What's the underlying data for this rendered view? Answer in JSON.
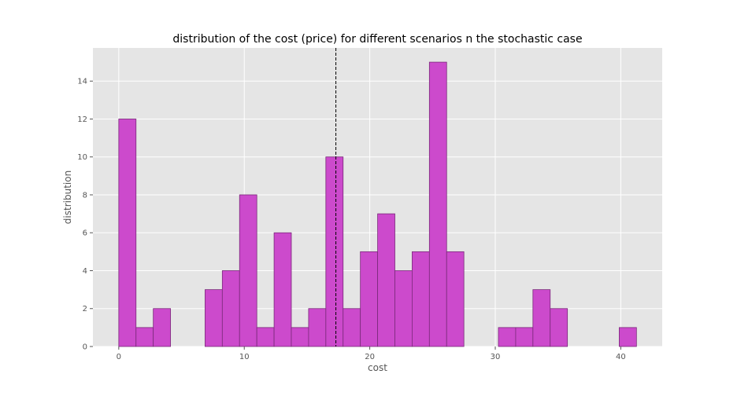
{
  "chart_data": {
    "type": "bar",
    "title": "distribution of the cost (price) for different scenarios n the stochastic case",
    "xlabel": "cost",
    "ylabel": "distribution",
    "xlim": [
      -2.06,
      43.3
    ],
    "ylim": [
      0,
      15.75
    ],
    "xticks": [
      0,
      10,
      20,
      30,
      40
    ],
    "yticks": [
      0,
      2,
      4,
      6,
      8,
      10,
      12,
      14
    ],
    "grid": true,
    "bin_edges": [
      0.0,
      1.375,
      2.75,
      4.125,
      5.5,
      6.875,
      8.25,
      9.625,
      11.0,
      12.375,
      13.75,
      15.125,
      16.5,
      17.875,
      19.25,
      20.625,
      22.0,
      23.375,
      24.75,
      26.125,
      27.5,
      28.875,
      30.25,
      31.625,
      33.0,
      34.375,
      35.75,
      37.125,
      38.5,
      39.875,
      41.25
    ],
    "values": [
      12,
      1,
      2,
      0,
      0,
      3,
      4,
      8,
      1,
      6,
      1,
      2,
      10,
      2,
      5,
      7,
      4,
      5,
      15,
      5,
      0,
      0,
      1,
      1,
      3,
      2,
      0,
      0,
      0,
      1
    ],
    "vline": {
      "x": 17.3,
      "style": "dashed",
      "color": "#000000"
    },
    "colors": {
      "bar_fill": "#cc4acc",
      "bar_edge": "#7a2a7a",
      "plot_bg": "#e5e5e5",
      "grid": "#ffffff"
    }
  }
}
